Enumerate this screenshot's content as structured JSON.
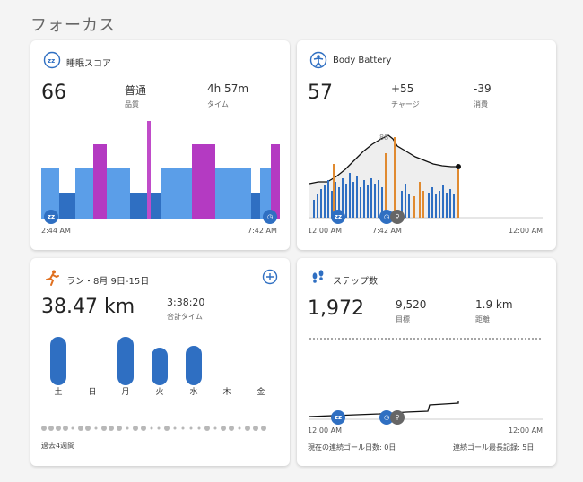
{
  "page": {
    "title": "フォーカス"
  },
  "sleep": {
    "title": "睡眠スコア",
    "score": "66",
    "quality_value": "普通",
    "quality_label": "品質",
    "time_value": "4h 57m",
    "time_label": "タイム",
    "start_time": "2:44 AM",
    "end_time": "7:42 AM",
    "colors": {
      "deep": "#2f6fc2",
      "light": "#5b9ee8",
      "rem": "#b43ac2",
      "awake": "#c04cc9"
    }
  },
  "battery": {
    "title": "Body Battery",
    "value": "57",
    "charge_value": "+55",
    "charge_label": "チャージ",
    "drain_value": "-39",
    "drain_label": "消費",
    "peak_label": "88",
    "time_start": "12:00 AM",
    "time_mid": "7:42 AM",
    "time_end": "12:00 AM"
  },
  "run": {
    "title": "ラン・8月 9日-15日",
    "distance": "38.47 km",
    "total_time_value": "3:38:20",
    "total_time_label": "合計タイム",
    "days": [
      "土",
      "日",
      "月",
      "火",
      "水",
      "木",
      "金"
    ],
    "active": [
      true,
      false,
      true,
      true,
      true,
      false,
      false
    ],
    "footer": "過去4週間"
  },
  "steps": {
    "title": "ステップ数",
    "value": "1,972",
    "goal_value": "9,520",
    "goal_label": "目標",
    "distance_value": "1.9 km",
    "distance_label": "距離",
    "time_start": "12:00 AM",
    "time_end": "12:00 AM",
    "streak_current": "現在の連続ゴール日数: 0日",
    "streak_best": "連続ゴール最長記録: 5日"
  }
}
